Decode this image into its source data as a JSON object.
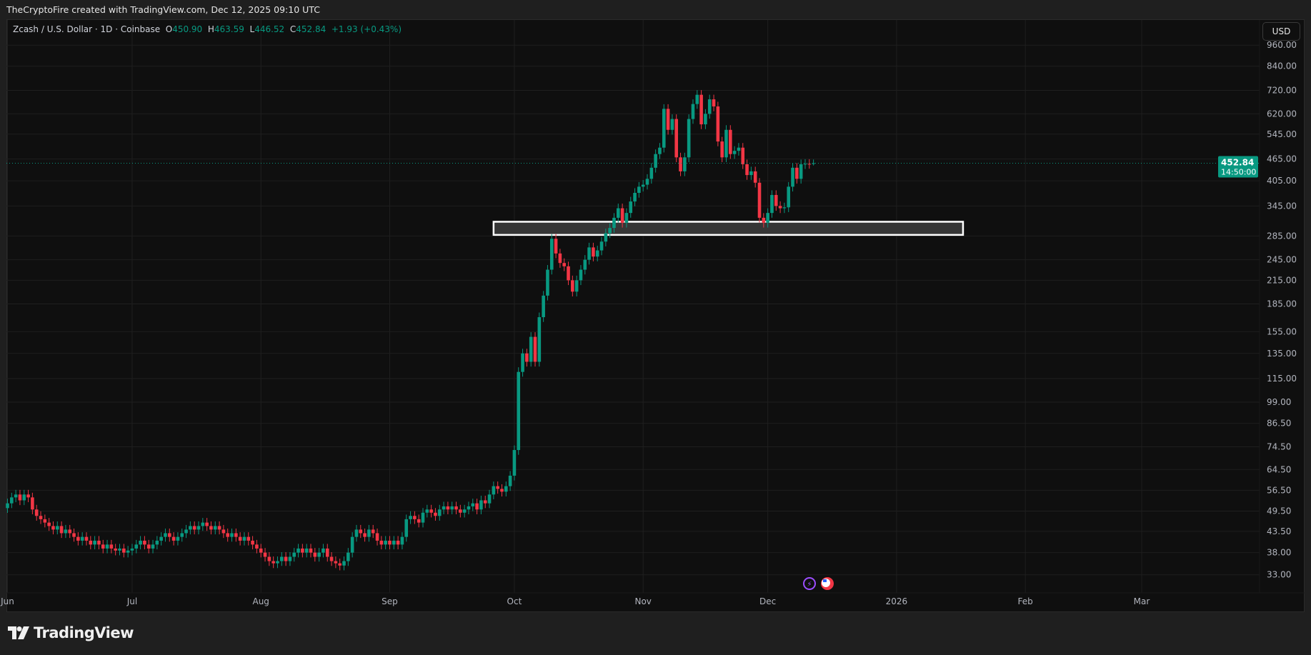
{
  "credit": "TheCryptoFire created with TradingView.com, Dec 12, 2025 09:10 UTC",
  "legend": {
    "symbol": "Zcash / U.S. Dollar · 1D · Coinbase",
    "o_label": "O",
    "o": "450.90",
    "h_label": "H",
    "h": "463.59",
    "l_label": "L",
    "l": "446.52",
    "c_label": "C",
    "c": "452.84",
    "change": "+1.93 (+0.43%)"
  },
  "currency_button": "USD",
  "price_label": {
    "price": "452.84",
    "countdown": "14:50:00",
    "color": "#089981"
  },
  "brand": "TradingView",
  "colors": {
    "up": "#089981",
    "down": "#f23645",
    "background": "#0f0f0f",
    "grid": "#1f1f1f",
    "zone_fill": "#363636",
    "zone_border": "#ffffff"
  },
  "icons": [
    "lightning-event-icon",
    "us-flag-economic-event-icon"
  ],
  "chart_data": {
    "type": "candlestick",
    "symbol": "ZEC/USD",
    "interval": "1D",
    "scale": "log",
    "first_date": "2025-06-01",
    "last_date": "2025-12-12",
    "closes": [
      52,
      54,
      55,
      53,
      55,
      54,
      50,
      48,
      47,
      46,
      45,
      44,
      45,
      43,
      44,
      43,
      42,
      41,
      42,
      41,
      40,
      41,
      40,
      39,
      40,
      39,
      38.5,
      39,
      38,
      38.5,
      39,
      40,
      41,
      40,
      39,
      40,
      41,
      42,
      43,
      42,
      41,
      42,
      43,
      44,
      45,
      44,
      45,
      46,
      45,
      44,
      45,
      44,
      43,
      42,
      43,
      42,
      41,
      42,
      41,
      40,
      39,
      38,
      37,
      36,
      35.5,
      36,
      37,
      36,
      37,
      38,
      39,
      38,
      39,
      38,
      37,
      38,
      39,
      37,
      36,
      35.5,
      35,
      36,
      38,
      42,
      44,
      43,
      42,
      44,
      43,
      41,
      40,
      41,
      40,
      41,
      40,
      42,
      47,
      48,
      47,
      46,
      49,
      50,
      49,
      48,
      50,
      51,
      50,
      51,
      50,
      49,
      50,
      51,
      52,
      50,
      53,
      52,
      55,
      58,
      57,
      56,
      58,
      62,
      73,
      120,
      135,
      128,
      150,
      128,
      170,
      195,
      230,
      280,
      255,
      240,
      235,
      215,
      200,
      215,
      230,
      245,
      265,
      250,
      260,
      275,
      290,
      300,
      320,
      340,
      310,
      330,
      355,
      375,
      390,
      395,
      410,
      440,
      480,
      500,
      640,
      560,
      600,
      470,
      430,
      470,
      600,
      660,
      700,
      580,
      620,
      680,
      650,
      520,
      470,
      560,
      480,
      490,
      500,
      450,
      420,
      430,
      400,
      320,
      310,
      330,
      370,
      345,
      340,
      342,
      390,
      440,
      410,
      450,
      451,
      450.9,
      452.84
    ],
    "last_candle": {
      "open": 450.9,
      "high": 463.59,
      "low": 446.52,
      "close": 452.84
    },
    "current_price": 452.84,
    "y_ticks": [
      "960.00",
      "840.00",
      "720.00",
      "620.00",
      "545.00",
      "465.00",
      "405.00",
      "345.00",
      "285.00",
      "245.00",
      "215.00",
      "185.00",
      "155.00",
      "135.00",
      "115.00",
      "99.00",
      "86.50",
      "74.50",
      "64.50",
      "56.50",
      "49.50",
      "43.50",
      "38.00",
      "33.00"
    ],
    "x_ticks": [
      {
        "label": "Jun",
        "date": "2025-06-01"
      },
      {
        "label": "Jul",
        "date": "2025-07-01"
      },
      {
        "label": "Aug",
        "date": "2025-08-01"
      },
      {
        "label": "Sep",
        "date": "2025-09-01"
      },
      {
        "label": "Oct",
        "date": "2025-10-01"
      },
      {
        "label": "Nov",
        "date": "2025-11-01"
      },
      {
        "label": "Dec",
        "date": "2025-12-01"
      },
      {
        "label": "2026",
        "date": "2026-01-01"
      },
      {
        "label": "Feb",
        "date": "2026-02-01"
      },
      {
        "label": "Mar",
        "date": "2026-03-01"
      }
    ],
    "zone": {
      "from": "2025-09-26",
      "to": "2026-01-17",
      "top": 312,
      "bottom": 287
    },
    "grid": true
  }
}
